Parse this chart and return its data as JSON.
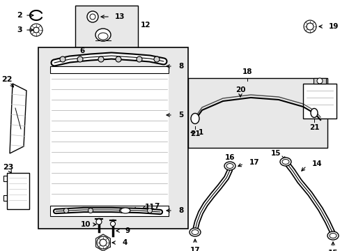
{
  "bg_color": "#ffffff",
  "line_color": "#000000",
  "gray_fill": "#e8e8e8",
  "fig_width": 4.89,
  "fig_height": 3.6,
  "dpi": 100
}
